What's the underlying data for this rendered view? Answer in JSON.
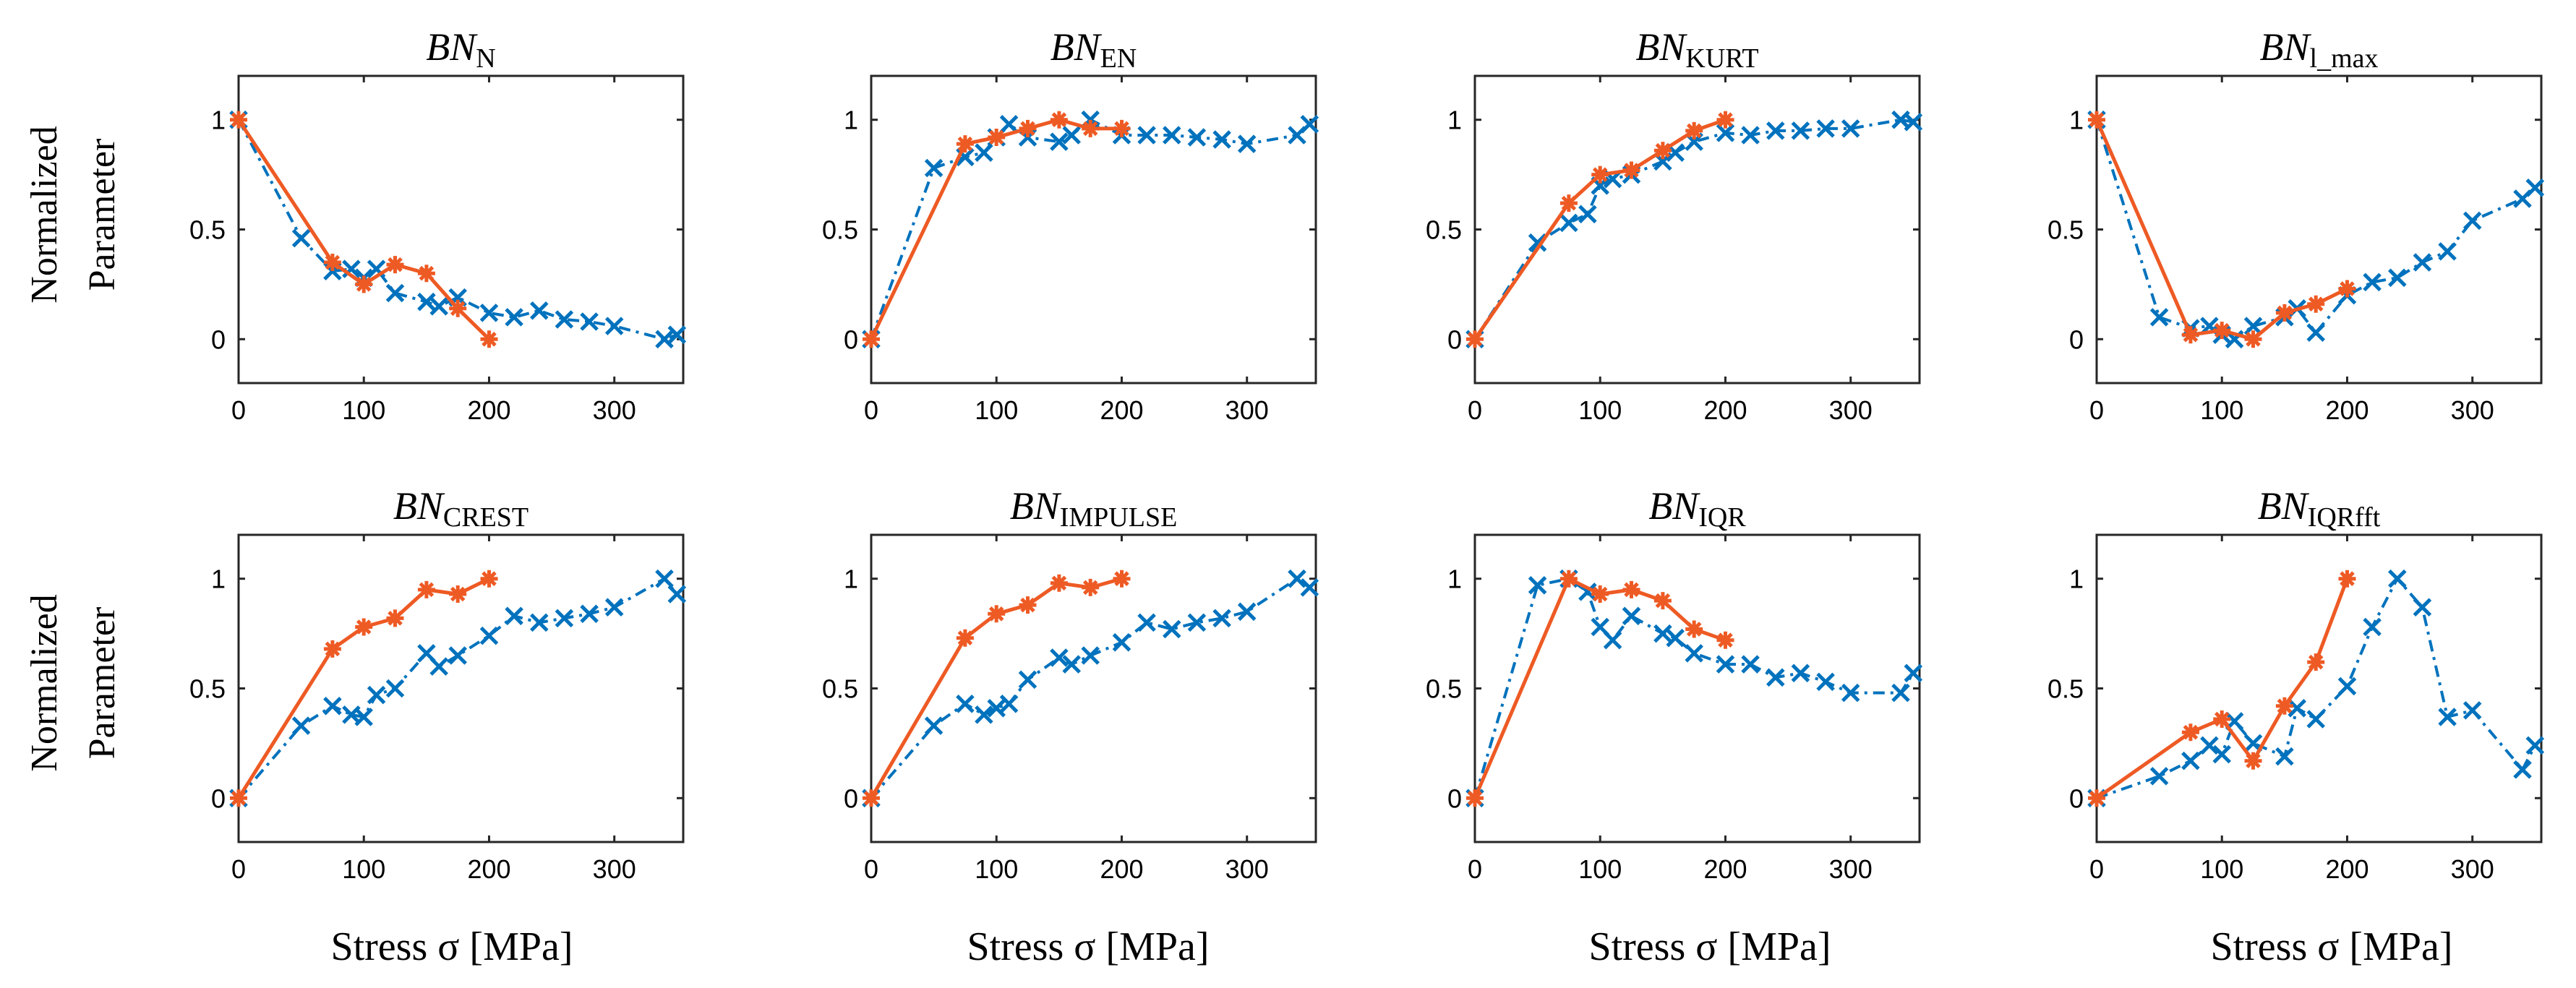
{
  "colors": {
    "series_a": "#0072BD",
    "series_b": "#EE5A24"
  },
  "ylabel": [
    "Normalized",
    "Parameter"
  ],
  "xlabel": "Stress σ [MPa]",
  "chart_data": [
    {
      "type": "line",
      "title_base": "BN",
      "title_sub": "N",
      "xlim": [
        0,
        355
      ],
      "ylim": [
        -0.2,
        1.2
      ],
      "xticks": [
        0,
        100,
        200,
        300
      ],
      "yticks": [
        0,
        0.5,
        1
      ],
      "xticklabels": [
        "0",
        "100",
        "200",
        "300"
      ],
      "yticklabels": [
        "0",
        "0.5",
        "1"
      ],
      "series": [
        {
          "name": "series_a",
          "style": "dashdot-x",
          "x": [
            0,
            50,
            75,
            90,
            100,
            110,
            125,
            150,
            160,
            175,
            200,
            220,
            240,
            260,
            280,
            300,
            340,
            350
          ],
          "y": [
            1,
            0.46,
            0.31,
            0.32,
            0.28,
            0.32,
            0.21,
            0.17,
            0.15,
            0.19,
            0.12,
            0.1,
            0.13,
            0.09,
            0.08,
            0.06,
            0.0,
            0.02
          ]
        },
        {
          "name": "series_b",
          "style": "solid-star",
          "x": [
            0,
            75,
            100,
            125,
            150,
            175,
            200
          ],
          "y": [
            1,
            0.35,
            0.25,
            0.34,
            0.3,
            0.14,
            0.0
          ]
        }
      ]
    },
    {
      "type": "line",
      "title_base": "BN",
      "title_sub": "EN",
      "xlim": [
        0,
        355
      ],
      "ylim": [
        -0.2,
        1.2
      ],
      "xticks": [
        0,
        100,
        200,
        300
      ],
      "yticks": [
        0,
        0.5,
        1
      ],
      "xticklabels": [
        "0",
        "100",
        "200",
        "300"
      ],
      "yticklabels": [
        "0",
        "0.5",
        "1"
      ],
      "series": [
        {
          "name": "series_a",
          "style": "dashdot-x",
          "x": [
            0,
            50,
            75,
            90,
            100,
            110,
            125,
            150,
            160,
            175,
            200,
            220,
            240,
            260,
            280,
            300,
            340,
            350
          ],
          "y": [
            0,
            0.78,
            0.83,
            0.85,
            0.92,
            0.98,
            0.92,
            0.9,
            0.93,
            1.0,
            0.93,
            0.93,
            0.93,
            0.92,
            0.91,
            0.89,
            0.93,
            0.98
          ]
        },
        {
          "name": "series_b",
          "style": "solid-star",
          "x": [
            0,
            75,
            100,
            125,
            150,
            175,
            200
          ],
          "y": [
            0,
            0.89,
            0.92,
            0.96,
            1.0,
            0.96,
            0.96
          ]
        }
      ]
    },
    {
      "type": "line",
      "title_base": "BN",
      "title_sub": "KURT",
      "xlim": [
        0,
        355
      ],
      "ylim": [
        -0.2,
        1.2
      ],
      "xticks": [
        0,
        100,
        200,
        300
      ],
      "yticks": [
        0,
        0.5,
        1
      ],
      "xticklabels": [
        "0",
        "100",
        "200",
        "300"
      ],
      "yticklabels": [
        "0",
        "0.5",
        "1"
      ],
      "series": [
        {
          "name": "series_a",
          "style": "dashdot-x",
          "x": [
            0,
            50,
            75,
            90,
            100,
            110,
            125,
            150,
            160,
            175,
            200,
            220,
            240,
            260,
            280,
            300,
            340,
            350
          ],
          "y": [
            0,
            0.44,
            0.53,
            0.57,
            0.7,
            0.73,
            0.75,
            0.81,
            0.85,
            0.9,
            0.94,
            0.93,
            0.95,
            0.95,
            0.96,
            0.96,
            1.0,
            0.99
          ]
        },
        {
          "name": "series_b",
          "style": "solid-star",
          "x": [
            0,
            75,
            100,
            125,
            150,
            175,
            200
          ],
          "y": [
            0,
            0.62,
            0.75,
            0.77,
            0.86,
            0.95,
            1.0
          ]
        }
      ]
    },
    {
      "type": "line",
      "title_base": "BN",
      "title_sub": "l_max",
      "xlim": [
        0,
        355
      ],
      "ylim": [
        -0.2,
        1.2
      ],
      "xticks": [
        0,
        100,
        200,
        300
      ],
      "yticks": [
        0,
        0.5,
        1
      ],
      "xticklabels": [
        "0",
        "100",
        "200",
        "300"
      ],
      "yticklabels": [
        "0",
        "0.5",
        "1"
      ],
      "series": [
        {
          "name": "series_a",
          "style": "dashdot-x",
          "x": [
            0,
            50,
            75,
            90,
            100,
            110,
            125,
            150,
            160,
            175,
            200,
            220,
            240,
            260,
            280,
            300,
            340,
            350
          ],
          "y": [
            1,
            0.1,
            0.05,
            0.06,
            0.02,
            0.0,
            0.06,
            0.1,
            0.14,
            0.03,
            0.2,
            0.26,
            0.28,
            0.35,
            0.4,
            0.54,
            0.64,
            0.69
          ]
        },
        {
          "name": "series_b",
          "style": "solid-star",
          "x": [
            0,
            75,
            100,
            125,
            150,
            175,
            200
          ],
          "y": [
            1,
            0.02,
            0.04,
            0.0,
            0.12,
            0.16,
            0.23
          ]
        }
      ]
    },
    {
      "type": "line",
      "title_base": "BN",
      "title_sub": "CREST",
      "xlim": [
        0,
        355
      ],
      "ylim": [
        -0.2,
        1.2
      ],
      "xticks": [
        0,
        100,
        200,
        300
      ],
      "yticks": [
        0,
        0.5,
        1
      ],
      "xticklabels": [
        "0",
        "100",
        "200",
        "300"
      ],
      "yticklabels": [
        "0",
        "0.5",
        "1"
      ],
      "series": [
        {
          "name": "series_a",
          "style": "dashdot-x",
          "x": [
            0,
            50,
            75,
            90,
            100,
            110,
            125,
            150,
            160,
            175,
            200,
            220,
            240,
            260,
            280,
            300,
            340,
            350
          ],
          "y": [
            0,
            0.33,
            0.42,
            0.38,
            0.37,
            0.47,
            0.5,
            0.66,
            0.6,
            0.65,
            0.74,
            0.83,
            0.8,
            0.82,
            0.84,
            0.87,
            1.0,
            0.93
          ]
        },
        {
          "name": "series_b",
          "style": "solid-star",
          "x": [
            0,
            75,
            100,
            125,
            150,
            175,
            200
          ],
          "y": [
            0,
            0.68,
            0.78,
            0.82,
            0.95,
            0.93,
            1.0
          ]
        }
      ]
    },
    {
      "type": "line",
      "title_base": "BN",
      "title_sub": "IMPULSE",
      "xlim": [
        0,
        355
      ],
      "ylim": [
        -0.2,
        1.2
      ],
      "xticks": [
        0,
        100,
        200,
        300
      ],
      "yticks": [
        0,
        0.5,
        1
      ],
      "xticklabels": [
        "0",
        "100",
        "200",
        "300"
      ],
      "yticklabels": [
        "0",
        "0.5",
        "1"
      ],
      "series": [
        {
          "name": "series_a",
          "style": "dashdot-x",
          "x": [
            0,
            50,
            75,
            90,
            100,
            110,
            125,
            150,
            160,
            175,
            200,
            220,
            240,
            260,
            280,
            300,
            340,
            350
          ],
          "y": [
            0,
            0.33,
            0.43,
            0.38,
            0.41,
            0.43,
            0.54,
            0.64,
            0.61,
            0.65,
            0.71,
            0.8,
            0.77,
            0.8,
            0.82,
            0.85,
            1.0,
            0.96
          ]
        },
        {
          "name": "series_b",
          "style": "solid-star",
          "x": [
            0,
            75,
            100,
            125,
            150,
            175,
            200
          ],
          "y": [
            0,
            0.73,
            0.84,
            0.88,
            0.98,
            0.96,
            1.0
          ]
        }
      ]
    },
    {
      "type": "line",
      "title_base": "BN",
      "title_sub": "IQR",
      "xlim": [
        0,
        355
      ],
      "ylim": [
        -0.2,
        1.2
      ],
      "xticks": [
        0,
        100,
        200,
        300
      ],
      "yticks": [
        0,
        0.5,
        1
      ],
      "xticklabels": [
        "0",
        "100",
        "200",
        "300"
      ],
      "yticklabels": [
        "0",
        "0.5",
        "1"
      ],
      "series": [
        {
          "name": "series_a",
          "style": "dashdot-x",
          "x": [
            0,
            50,
            75,
            90,
            100,
            110,
            125,
            150,
            160,
            175,
            200,
            220,
            240,
            260,
            280,
            300,
            340,
            350
          ],
          "y": [
            0,
            0.97,
            1.0,
            0.94,
            0.78,
            0.72,
            0.83,
            0.75,
            0.73,
            0.66,
            0.61,
            0.61,
            0.55,
            0.57,
            0.53,
            0.48,
            0.48,
            0.57
          ]
        },
        {
          "name": "series_b",
          "style": "solid-star",
          "x": [
            0,
            75,
            100,
            125,
            150,
            175,
            200
          ],
          "y": [
            0,
            1.0,
            0.93,
            0.95,
            0.9,
            0.77,
            0.72
          ]
        }
      ]
    },
    {
      "type": "line",
      "title_base": "BN",
      "title_sub": "IQRfft",
      "xlim": [
        0,
        355
      ],
      "ylim": [
        -0.2,
        1.2
      ],
      "xticks": [
        0,
        100,
        200,
        300
      ],
      "yticks": [
        0,
        0.5,
        1
      ],
      "xticklabels": [
        "0",
        "100",
        "200",
        "300"
      ],
      "yticklabels": [
        "0",
        "0.5",
        "1"
      ],
      "series": [
        {
          "name": "series_a",
          "style": "dashdot-x",
          "x": [
            0,
            50,
            75,
            90,
            100,
            110,
            125,
            150,
            160,
            175,
            200,
            220,
            240,
            260,
            280,
            300,
            340,
            350
          ],
          "y": [
            0,
            0.1,
            0.17,
            0.24,
            0.2,
            0.35,
            0.25,
            0.19,
            0.41,
            0.36,
            0.51,
            0.78,
            1.0,
            0.87,
            0.37,
            0.4,
            0.13,
            0.24
          ]
        },
        {
          "name": "series_b",
          "style": "solid-star",
          "x": [
            0,
            75,
            100,
            125,
            150,
            175,
            200
          ],
          "y": [
            0,
            0.3,
            0.36,
            0.17,
            0.42,
            0.62,
            1.0
          ]
        }
      ]
    }
  ]
}
